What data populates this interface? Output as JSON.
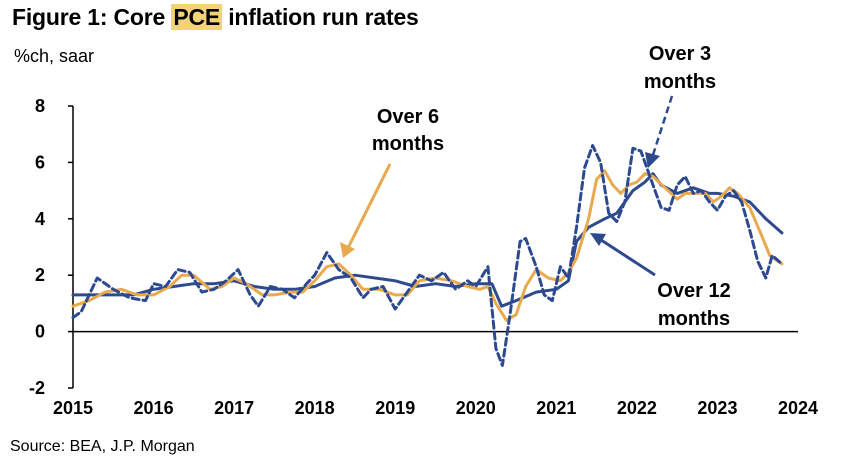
{
  "title": {
    "prefix": "Figure 1: Core ",
    "highlight": "PCE",
    "suffix": " inflation run rates"
  },
  "units": "%ch, saar",
  "source": "Source: BEA, J.P. Morgan",
  "colors": {
    "navy": "#2e4a8f",
    "gold": "#e8a94f",
    "highlight": "#f3d27a",
    "axis": "#000000"
  },
  "chart_data": {
    "type": "line",
    "title": "Figure 1: Core PCE inflation run rates",
    "ylabel": "%ch, saar",
    "xlabel": "",
    "xlim": [
      2015.0,
      2024.0
    ],
    "ylim": [
      -2,
      8
    ],
    "yticks": [
      {
        "value": 8,
        "label": "8"
      },
      {
        "value": 6,
        "label": "6"
      },
      {
        "value": 4,
        "label": "4"
      },
      {
        "value": 2,
        "label": "2"
      },
      {
        "value": 0,
        "label": "0"
      },
      {
        "value": -2,
        "label": "-2"
      }
    ],
    "xticks": [
      {
        "value": 2015,
        "label": "2015"
      },
      {
        "value": 2016,
        "label": "2016"
      },
      {
        "value": 2017,
        "label": "2017"
      },
      {
        "value": 2018,
        "label": "2018"
      },
      {
        "value": 2019,
        "label": "2019"
      },
      {
        "value": 2020,
        "label": "2020"
      },
      {
        "value": 2021,
        "label": "2021"
      },
      {
        "value": 2022,
        "label": "2022"
      },
      {
        "value": 2023,
        "label": "2023"
      },
      {
        "value": 2024,
        "label": "2024"
      }
    ],
    "series": [
      {
        "name": "Over 3 months",
        "label_lines": [
          "Over 3",
          "months"
        ],
        "color": "#2e4a8f",
        "style": "dashed",
        "points": [
          [
            2015.0,
            0.5
          ],
          [
            2015.1,
            0.7
          ],
          [
            2015.3,
            1.9
          ],
          [
            2015.5,
            1.5
          ],
          [
            2015.7,
            1.2
          ],
          [
            2015.9,
            1.1
          ],
          [
            2016.0,
            1.7
          ],
          [
            2016.15,
            1.6
          ],
          [
            2016.3,
            2.2
          ],
          [
            2016.45,
            2.1
          ],
          [
            2016.6,
            1.4
          ],
          [
            2016.75,
            1.5
          ],
          [
            2016.9,
            1.8
          ],
          [
            2017.05,
            2.2
          ],
          [
            2017.2,
            1.3
          ],
          [
            2017.3,
            0.9
          ],
          [
            2017.45,
            1.6
          ],
          [
            2017.6,
            1.5
          ],
          [
            2017.75,
            1.2
          ],
          [
            2017.9,
            1.7
          ],
          [
            2018.0,
            2.0
          ],
          [
            2018.15,
            2.8
          ],
          [
            2018.3,
            2.2
          ],
          [
            2018.45,
            1.9
          ],
          [
            2018.6,
            1.2
          ],
          [
            2018.7,
            1.5
          ],
          [
            2018.85,
            1.6
          ],
          [
            2019.0,
            0.8
          ],
          [
            2019.15,
            1.4
          ],
          [
            2019.3,
            2.0
          ],
          [
            2019.45,
            1.8
          ],
          [
            2019.6,
            2.1
          ],
          [
            2019.75,
            1.5
          ],
          [
            2019.9,
            1.8
          ],
          [
            2020.0,
            1.6
          ],
          [
            2020.15,
            2.3
          ],
          [
            2020.25,
            -0.6
          ],
          [
            2020.33,
            -1.2
          ],
          [
            2020.42,
            0.5
          ],
          [
            2020.55,
            3.2
          ],
          [
            2020.62,
            3.3
          ],
          [
            2020.75,
            2.3
          ],
          [
            2020.85,
            1.3
          ],
          [
            2020.95,
            1.1
          ],
          [
            2021.05,
            2.3
          ],
          [
            2021.15,
            1.9
          ],
          [
            2021.25,
            3.7
          ],
          [
            2021.35,
            5.8
          ],
          [
            2021.45,
            6.6
          ],
          [
            2021.55,
            6.0
          ],
          [
            2021.65,
            4.2
          ],
          [
            2021.75,
            3.9
          ],
          [
            2021.85,
            4.6
          ],
          [
            2021.95,
            6.5
          ],
          [
            2022.05,
            6.4
          ],
          [
            2022.2,
            5.2
          ],
          [
            2022.3,
            4.4
          ],
          [
            2022.4,
            4.3
          ],
          [
            2022.5,
            5.2
          ],
          [
            2022.6,
            5.5
          ],
          [
            2022.7,
            4.9
          ],
          [
            2022.8,
            5.0
          ],
          [
            2022.9,
            4.6
          ],
          [
            2023.0,
            4.3
          ],
          [
            2023.1,
            4.8
          ],
          [
            2023.2,
            5.0
          ],
          [
            2023.3,
            4.6
          ],
          [
            2023.4,
            3.6
          ],
          [
            2023.5,
            2.5
          ],
          [
            2023.6,
            1.9
          ],
          [
            2023.68,
            2.7
          ],
          [
            2023.8,
            2.4
          ]
        ]
      },
      {
        "name": "Over 6 months",
        "label_lines": [
          "Over 6",
          "months"
        ],
        "color": "#e8a94f",
        "style": "solid",
        "points": [
          [
            2015.0,
            0.9
          ],
          [
            2015.2,
            1.1
          ],
          [
            2015.4,
            1.4
          ],
          [
            2015.6,
            1.5
          ],
          [
            2015.8,
            1.3
          ],
          [
            2016.0,
            1.3
          ],
          [
            2016.2,
            1.6
          ],
          [
            2016.35,
            2.0
          ],
          [
            2016.5,
            2.0
          ],
          [
            2016.7,
            1.5
          ],
          [
            2016.85,
            1.6
          ],
          [
            2017.0,
            1.9
          ],
          [
            2017.15,
            1.7
          ],
          [
            2017.35,
            1.3
          ],
          [
            2017.5,
            1.3
          ],
          [
            2017.7,
            1.4
          ],
          [
            2017.85,
            1.4
          ],
          [
            2018.0,
            1.8
          ],
          [
            2018.15,
            2.3
          ],
          [
            2018.3,
            2.4
          ],
          [
            2018.45,
            2.0
          ],
          [
            2018.6,
            1.5
          ],
          [
            2018.8,
            1.5
          ],
          [
            2019.0,
            1.3
          ],
          [
            2019.15,
            1.3
          ],
          [
            2019.3,
            1.8
          ],
          [
            2019.5,
            1.9
          ],
          [
            2019.7,
            1.8
          ],
          [
            2019.9,
            1.6
          ],
          [
            2020.05,
            1.5
          ],
          [
            2020.15,
            1.6
          ],
          [
            2020.25,
            1.0
          ],
          [
            2020.38,
            0.4
          ],
          [
            2020.5,
            0.6
          ],
          [
            2020.62,
            1.6
          ],
          [
            2020.75,
            2.2
          ],
          [
            2020.9,
            1.9
          ],
          [
            2021.05,
            1.8
          ],
          [
            2021.15,
            2.1
          ],
          [
            2021.25,
            2.6
          ],
          [
            2021.4,
            4.0
          ],
          [
            2021.5,
            5.4
          ],
          [
            2021.6,
            5.7
          ],
          [
            2021.7,
            5.2
          ],
          [
            2021.8,
            4.9
          ],
          [
            2021.9,
            5.2
          ],
          [
            2022.0,
            5.3
          ],
          [
            2022.1,
            5.6
          ],
          [
            2022.2,
            5.5
          ],
          [
            2022.35,
            5.1
          ],
          [
            2022.5,
            4.7
          ],
          [
            2022.6,
            4.9
          ],
          [
            2022.7,
            4.9
          ],
          [
            2022.85,
            4.9
          ],
          [
            2022.95,
            4.6
          ],
          [
            2023.05,
            4.8
          ],
          [
            2023.15,
            5.1
          ],
          [
            2023.25,
            4.9
          ],
          [
            2023.4,
            4.4
          ],
          [
            2023.55,
            3.4
          ],
          [
            2023.65,
            2.7
          ],
          [
            2023.8,
            2.4
          ]
        ]
      },
      {
        "name": "Over 12 months",
        "label_lines": [
          "Over 12",
          "months"
        ],
        "color": "#2e4a8f",
        "style": "solid",
        "points": [
          [
            2015.0,
            1.3
          ],
          [
            2015.25,
            1.3
          ],
          [
            2015.5,
            1.3
          ],
          [
            2015.75,
            1.3
          ],
          [
            2016.0,
            1.5
          ],
          [
            2016.25,
            1.6
          ],
          [
            2016.5,
            1.7
          ],
          [
            2016.75,
            1.7
          ],
          [
            2017.0,
            1.8
          ],
          [
            2017.25,
            1.6
          ],
          [
            2017.5,
            1.5
          ],
          [
            2017.75,
            1.5
          ],
          [
            2018.0,
            1.6
          ],
          [
            2018.25,
            1.9
          ],
          [
            2018.5,
            2.0
          ],
          [
            2018.75,
            1.9
          ],
          [
            2019.0,
            1.8
          ],
          [
            2019.25,
            1.6
          ],
          [
            2019.5,
            1.7
          ],
          [
            2019.75,
            1.6
          ],
          [
            2020.0,
            1.7
          ],
          [
            2020.2,
            1.7
          ],
          [
            2020.32,
            0.9
          ],
          [
            2020.5,
            1.1
          ],
          [
            2020.75,
            1.4
          ],
          [
            2021.0,
            1.5
          ],
          [
            2021.15,
            1.8
          ],
          [
            2021.25,
            3.2
          ],
          [
            2021.4,
            3.7
          ],
          [
            2021.6,
            4.0
          ],
          [
            2021.75,
            4.2
          ],
          [
            2021.95,
            5.0
          ],
          [
            2022.1,
            5.3
          ],
          [
            2022.2,
            5.6
          ],
          [
            2022.3,
            5.2
          ],
          [
            2022.5,
            4.9
          ],
          [
            2022.7,
            5.1
          ],
          [
            2022.9,
            4.9
          ],
          [
            2023.0,
            4.9
          ],
          [
            2023.2,
            4.8
          ],
          [
            2023.4,
            4.6
          ],
          [
            2023.6,
            4.0
          ],
          [
            2023.8,
            3.5
          ]
        ]
      }
    ]
  }
}
